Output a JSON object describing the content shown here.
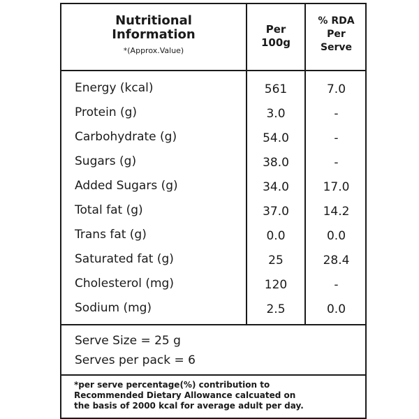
{
  "header": {
    "title_line1": "Nutritional",
    "title_line2": "Information",
    "subtitle": "*(Approx.Value)",
    "per_line1": "Per",
    "per_line2": "100g",
    "rda_line1": "% RDA",
    "rda_line2": "Per",
    "rda_line3": "Serve"
  },
  "rows": [
    {
      "name": "Energy (kcal)",
      "per100g": "561",
      "rda": "7.0"
    },
    {
      "name": "Protein (g)",
      "per100g": "3.0",
      "rda": "-"
    },
    {
      "name": "Carbohydrate (g)",
      "per100g": "54.0",
      "rda": "-"
    },
    {
      "name": "Sugars (g)",
      "per100g": "38.0",
      "rda": "-"
    },
    {
      "name": "Added Sugars (g)",
      "per100g": "34.0",
      "rda": "17.0"
    },
    {
      "name": "Total fat (g)",
      "per100g": "37.0",
      "rda": "14.2"
    },
    {
      "name": "Trans fat (g)",
      "per100g": "0.0",
      "rda": "0.0"
    },
    {
      "name": "Saturated fat (g)",
      "per100g": "25",
      "rda": "28.4"
    },
    {
      "name": "Cholesterol (mg)",
      "per100g": "120",
      "rda": "-"
    },
    {
      "name": "Sodium (mg)",
      "per100g": "2.5",
      "rda": "0.0"
    }
  ],
  "serving": {
    "serve_size": "Serve Size = 25 g",
    "serves_per_pack": "Serves per pack = 6"
  },
  "footnote": {
    "line1": "*per serve percentage(%) contribution to",
    "line2": "Recommended Dietary Allowance calcuated on",
    "line3": "the basis of 2000 kcal for average adult per day."
  }
}
